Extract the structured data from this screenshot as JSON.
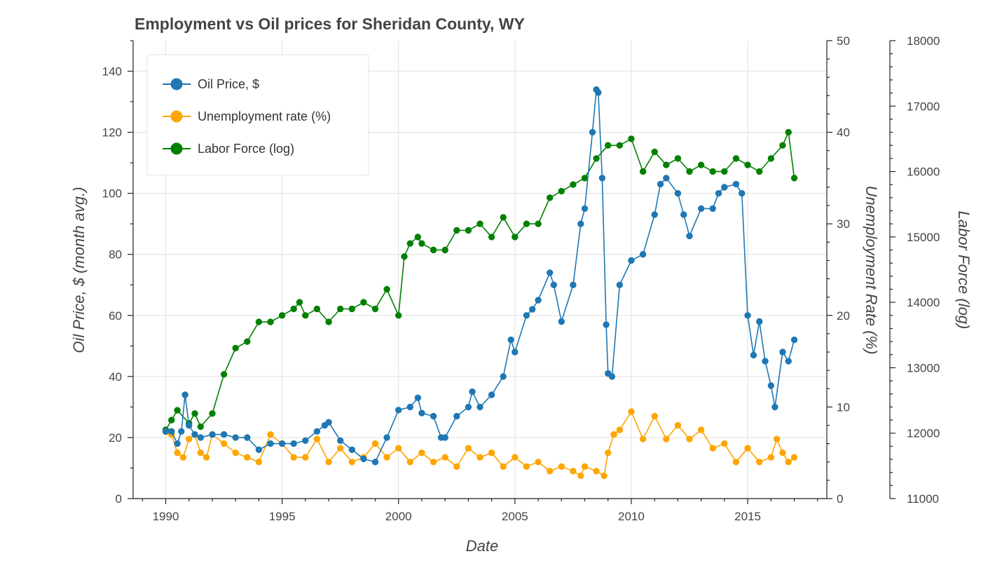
{
  "chart_data": {
    "type": "line",
    "title": "Employment vs Oil prices for Sheridan County, WY",
    "xlabel": "Date",
    "ylabel_left": "Oil Price, $ (month avg.)",
    "ylabel_right": "Unemployment Rate (%)",
    "ylabel_right2": "Labor Force (log)",
    "x_range": [
      1988.6,
      2018.4
    ],
    "x_ticks": [
      1990,
      1995,
      2000,
      2005,
      2010,
      2015
    ],
    "y_left_range": [
      0,
      150
    ],
    "y_left_ticks": [
      0,
      20,
      40,
      60,
      80,
      100,
      120,
      140
    ],
    "y_right_range": [
      0,
      50
    ],
    "y_right_ticks": [
      0,
      10,
      20,
      30,
      40,
      50
    ],
    "y_right2_range": [
      11000,
      18000
    ],
    "y_right2_ticks": [
      11000,
      12000,
      13000,
      14000,
      15000,
      16000,
      17000,
      18000
    ],
    "grid": true,
    "legend_position": "top-left",
    "colors": {
      "oil": "#1f77b4",
      "unemployment": "#ffa500",
      "labor": "#008000"
    },
    "series": [
      {
        "name": "Oil Price, $",
        "axis": "left",
        "x": [
          1990.0,
          1990.25,
          1990.5,
          1990.67,
          1990.83,
          1991.0,
          1991.25,
          1991.5,
          1992.0,
          1992.5,
          1993.0,
          1993.5,
          1994.0,
          1994.5,
          1995.0,
          1995.5,
          1996.0,
          1996.5,
          1996.83,
          1997.0,
          1997.5,
          1998.0,
          1998.5,
          1999.0,
          1999.5,
          2000.0,
          2000.5,
          2000.83,
          2001.0,
          2001.5,
          2001.83,
          2002.0,
          2002.5,
          2003.0,
          2003.17,
          2003.5,
          2004.0,
          2004.5,
          2004.83,
          2005.0,
          2005.5,
          2005.75,
          2006.0,
          2006.5,
          2006.67,
          2007.0,
          2007.5,
          2007.83,
          2008.0,
          2008.33,
          2008.5,
          2008.58,
          2008.75,
          2008.92,
          2009.0,
          2009.17,
          2009.5,
          2010.0,
          2010.5,
          2011.0,
          2011.25,
          2011.5,
          2012.0,
          2012.25,
          2012.5,
          2013.0,
          2013.5,
          2013.75,
          2014.0,
          2014.5,
          2014.75,
          2015.0,
          2015.25,
          2015.5,
          2015.75,
          2016.0,
          2016.17,
          2016.5,
          2016.75,
          2017.0
        ],
        "y": [
          22,
          22,
          18,
          22,
          34,
          24,
          21,
          20,
          21,
          21,
          20,
          20,
          16,
          18,
          18,
          18,
          19,
          22,
          24,
          25,
          19,
          16,
          13,
          12,
          20,
          29,
          30,
          33,
          28,
          27,
          20,
          20,
          27,
          30,
          35,
          30,
          34,
          40,
          52,
          48,
          60,
          62,
          65,
          74,
          70,
          58,
          70,
          90,
          95,
          120,
          134,
          133,
          105,
          57,
          41,
          40,
          70,
          78,
          80,
          93,
          103,
          105,
          100,
          93,
          86,
          95,
          95,
          100,
          102,
          103,
          100,
          60,
          47,
          58,
          45,
          37,
          30,
          48,
          45,
          52
        ]
      },
      {
        "name": "Unemployment rate (%)",
        "axis": "right",
        "x": [
          1990.0,
          1990.25,
          1990.5,
          1990.75,
          1991.0,
          1991.25,
          1991.5,
          1991.75,
          1992.0,
          1992.5,
          1993.0,
          1993.5,
          1994.0,
          1994.5,
          1995.0,
          1995.5,
          1996.0,
          1996.5,
          1997.0,
          1997.5,
          1998.0,
          1998.5,
          1999.0,
          1999.5,
          2000.0,
          2000.5,
          2001.0,
          2001.5,
          2002.0,
          2002.5,
          2003.0,
          2003.5,
          2004.0,
          2004.5,
          2005.0,
          2005.5,
          2006.0,
          2006.5,
          2007.0,
          2007.5,
          2007.83,
          2008.0,
          2008.5,
          2008.83,
          2009.0,
          2009.25,
          2009.5,
          2010.0,
          2010.5,
          2011.0,
          2011.5,
          2012.0,
          2012.5,
          2013.0,
          2013.5,
          2014.0,
          2014.5,
          2015.0,
          2015.5,
          2016.0,
          2016.25,
          2016.5,
          2016.75,
          2017.0
        ],
        "y": [
          7.3,
          7,
          5,
          4.5,
          6.5,
          7,
          5,
          4.5,
          7,
          6,
          5,
          4.5,
          4,
          7,
          6,
          4.5,
          4.5,
          6.5,
          4,
          5.5,
          4,
          4.5,
          6,
          4.5,
          5.5,
          4,
          5,
          4,
          4.5,
          3.5,
          5.5,
          4.5,
          5,
          3.5,
          4.5,
          3.5,
          4,
          3,
          3.5,
          3,
          2.5,
          3.5,
          3,
          2.5,
          5,
          7,
          7.5,
          9.5,
          6.5,
          9,
          6.5,
          8,
          6.5,
          7.5,
          5.5,
          6,
          4,
          5.5,
          4,
          4.5,
          6.5,
          5,
          4,
          4.5
        ]
      },
      {
        "name": "Labor Force (log)",
        "axis": "right2",
        "x": [
          1990.0,
          1990.25,
          1990.5,
          1991.0,
          1991.25,
          1991.5,
          1992.0,
          1992.5,
          1993.0,
          1993.5,
          1994.0,
          1994.5,
          1995.0,
          1995.5,
          1995.75,
          1996.0,
          1996.5,
          1997.0,
          1997.5,
          1998.0,
          1998.5,
          1999.0,
          1999.5,
          2000.0,
          2000.25,
          2000.5,
          2000.83,
          2001.0,
          2001.5,
          2002.0,
          2002.5,
          2003.0,
          2003.5,
          2004.0,
          2004.5,
          2005.0,
          2005.5,
          2006.0,
          2006.5,
          2007.0,
          2007.5,
          2008.0,
          2008.5,
          2009.0,
          2009.5,
          2010.0,
          2010.5,
          2011.0,
          2011.5,
          2012.0,
          2012.5,
          2013.0,
          2013.5,
          2014.0,
          2014.5,
          2015.0,
          2015.5,
          2016.0,
          2016.5,
          2016.75,
          2017.0
        ],
        "y": [
          12050,
          12200,
          12350,
          12150,
          12300,
          12100,
          12300,
          12900,
          13300,
          13400,
          13700,
          13700,
          13800,
          13900,
          14000,
          13800,
          13900,
          13700,
          13900,
          13900,
          14000,
          13900,
          14200,
          13800,
          14700,
          14900,
          15000,
          14900,
          14800,
          14800,
          15100,
          15100,
          15200,
          15000,
          15300,
          15000,
          15200,
          15200,
          15600,
          15700,
          15800,
          15900,
          16200,
          16400,
          16400,
          16500,
          16000,
          16300,
          16100,
          16200,
          16000,
          16100,
          16000,
          16000,
          16200,
          16100,
          16000,
          16200,
          16400,
          16600,
          15900
        ]
      }
    ]
  }
}
